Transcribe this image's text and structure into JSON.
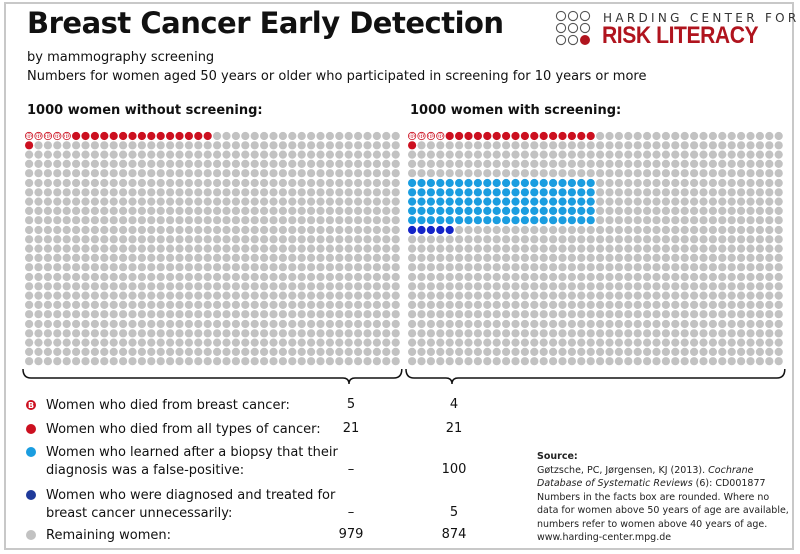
{
  "header": {
    "title": "Breast Cancer Early Detection",
    "subtitle": "by mammography screening",
    "description": "Numbers for women aged 50 years or older who participated in screening for 10 years or more"
  },
  "logo": {
    "line1": "HARDING CENTER FOR",
    "line2": "RISK LITERACY",
    "brand_color": "#b0141e"
  },
  "colors": {
    "breast_cancer_death": "#cc1020",
    "cancer_death": "#cc1020",
    "false_positive": "#1a9de0",
    "overdiagnosis": "#1424c8",
    "remaining": "#c2c2c2"
  },
  "panels": [
    {
      "title": "1000 women without screening:",
      "total": 1000,
      "died_breast_cancer": 5,
      "died_all_cancer": 21,
      "false_positive": 0,
      "overdiagnosed": 0,
      "remaining": 979
    },
    {
      "title": "1000 women with screening:",
      "total": 1000,
      "died_breast_cancer": 4,
      "died_all_cancer": 21,
      "false_positive": 100,
      "overdiagnosed": 5,
      "remaining": 874
    }
  ],
  "legend": [
    {
      "icon": "breast-cancer-b-dot-icon",
      "label": "Women who died from breast cancer:",
      "without": "5",
      "with": "4"
    },
    {
      "icon": "red-dot-icon",
      "label": "Women who died from all types of cancer:",
      "without": "21",
      "with": "21"
    },
    {
      "icon": "light-blue-dot-icon",
      "label_line1": "Women who learned after a biopsy that their",
      "label_line2": "diagnosis was a false-positive:",
      "without": "–",
      "with": "100"
    },
    {
      "icon": "dark-blue-dot-icon",
      "label_line1": "Women who were diagnosed and treated for",
      "label_line2": "breast cancer unnecessarily:",
      "without": "–",
      "with": "5"
    },
    {
      "icon": "gray-dot-icon",
      "label": "Remaining women:",
      "without": "979",
      "with": "874"
    }
  ],
  "source": {
    "heading": "Source:",
    "citation_authors": "Gøtzsche, PC, Jørgensen, KJ (2013). ",
    "citation_journal": "Cochrane Database of Systematic Reviews",
    "citation_rest": " (6): CD001877",
    "note": "Numbers in the facts box are rounded. Where no data for women above 50 years of age are available, numbers refer to women above 40 years of age.",
    "website": "www.harding-center.mpg.de"
  }
}
